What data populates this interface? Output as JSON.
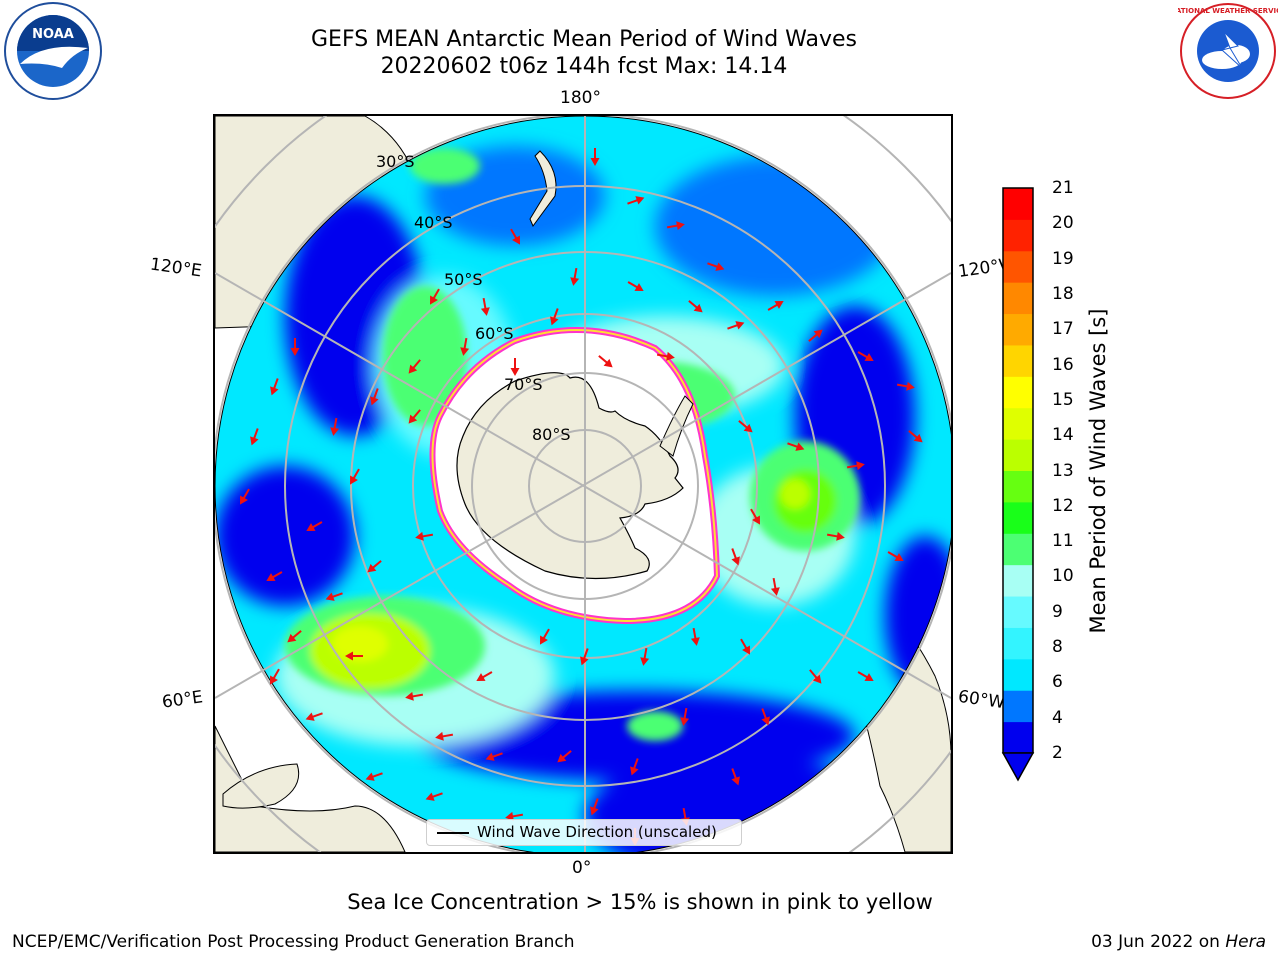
{
  "title": {
    "line1": "GEFS MEAN Antarctic Mean Period of Wind Waves",
    "line2": "20220602 t06z 144h fcst   Max: 14.14"
  },
  "logos": {
    "left_name": "NOAA",
    "right_name": "NATIONAL WEATHER SERVICE"
  },
  "map": {
    "projection": "south-polar-stereographic",
    "longitude_labels": {
      "top": "180°",
      "upper_left": "120°E",
      "upper_right": "120°W",
      "lower_left": "60°E",
      "lower_right": "60°W",
      "bottom": "0°"
    },
    "latitude_labels": [
      "30°S",
      "40°S",
      "50°S",
      "60°S",
      "70°S",
      "80°S"
    ],
    "colors": {
      "land": "#efeddc",
      "ice_edge_pink": "#ff33cc",
      "ice_edge_yellow": "#ffdd33",
      "arrow": "#ee1111",
      "grid": "#b5b5b5"
    }
  },
  "legend": {
    "label": "Wind Wave Direction (unscaled)"
  },
  "colorbar": {
    "label": "Mean Period of Wind Waves [s]",
    "ticks": [
      "21",
      "20",
      "19",
      "18",
      "17",
      "16",
      "15",
      "14",
      "13",
      "12",
      "11",
      "10",
      "9",
      "8",
      "6",
      "4",
      "2"
    ],
    "colors": [
      "#0000ee",
      "#0077ff",
      "#00e8ff",
      "#33f4ff",
      "#66faff",
      "#a8fff4",
      "#4cff73",
      "#19ff19",
      "#66ff11",
      "#bbff00",
      "#dfff00",
      "#ffff00",
      "#ffd500",
      "#ffaa00",
      "#ff8800",
      "#ff5500",
      "#ff2200",
      "#ff0000"
    ],
    "extend": "min"
  },
  "caption": "Sea Ice Concentration > 15% is shown in pink to yellow",
  "footer": {
    "left": "NCEP/EMC/Verification Post Processing Product Generation Branch",
    "right_date": "03 Jun 2022 on ",
    "right_machine": "Hera"
  }
}
